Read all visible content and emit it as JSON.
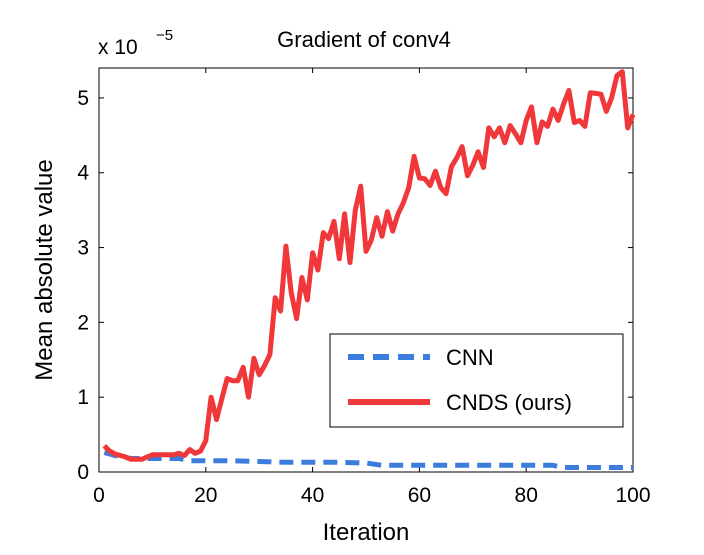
{
  "chart_data": {
    "type": "line",
    "title": "Gradient of conv4",
    "xlabel": "Iteration",
    "ylabel": "Mean absolute value",
    "y_multiplier_base": "x 10",
    "y_multiplier_exponent": "−5",
    "xlim": [
      0,
      100
    ],
    "ylim": [
      0,
      5.4
    ],
    "x_ticks": [
      0,
      20,
      40,
      60,
      80,
      100
    ],
    "y_ticks": [
      0,
      1,
      2,
      3,
      4,
      5
    ],
    "grid": false,
    "legend_position": "lower-right",
    "series": [
      {
        "name": "CNN",
        "color": "#3b7ddd",
        "style": "dashed",
        "x": [
          1,
          3,
          6,
          9,
          12,
          15,
          17,
          20,
          25,
          30,
          35,
          40,
          45,
          50,
          53,
          55,
          60,
          65,
          70,
          75,
          80,
          85,
          87,
          90,
          95,
          100
        ],
        "y": [
          0.26,
          0.22,
          0.18,
          0.18,
          0.18,
          0.18,
          0.15,
          0.15,
          0.15,
          0.14,
          0.13,
          0.13,
          0.13,
          0.12,
          0.09,
          0.09,
          0.09,
          0.09,
          0.09,
          0.09,
          0.09,
          0.09,
          0.06,
          0.06,
          0.06,
          0.06
        ]
      },
      {
        "name": "CNDS (ours)",
        "color": "#f0373a",
        "style": "solid",
        "x": [
          1,
          2,
          3,
          4,
          5,
          6,
          7,
          8,
          9,
          10,
          11,
          12,
          13,
          14,
          15,
          16,
          17,
          18,
          19,
          20,
          21,
          22,
          23,
          24,
          25,
          26,
          27,
          28,
          29,
          30,
          31,
          32,
          33,
          34,
          35,
          36,
          37,
          38,
          39,
          40,
          41,
          42,
          43,
          44,
          45,
          46,
          47,
          48,
          49,
          50,
          51,
          52,
          53,
          54,
          55,
          56,
          57,
          58,
          59,
          60,
          61,
          62,
          63,
          64,
          65,
          66,
          67,
          68,
          69,
          70,
          71,
          72,
          73,
          74,
          75,
          76,
          77,
          78,
          79,
          80,
          81,
          82,
          83,
          84,
          85,
          86,
          87,
          88,
          89,
          90,
          91,
          92,
          93,
          94,
          95,
          96,
          97,
          98,
          99,
          100
        ],
        "y": [
          0.35,
          0.28,
          0.24,
          0.22,
          0.2,
          0.17,
          0.17,
          0.17,
          0.2,
          0.23,
          0.23,
          0.23,
          0.23,
          0.23,
          0.25,
          0.22,
          0.3,
          0.25,
          0.28,
          0.42,
          1.0,
          0.7,
          0.98,
          1.25,
          1.22,
          1.22,
          1.4,
          1.0,
          1.52,
          1.3,
          1.42,
          1.57,
          2.33,
          2.15,
          3.02,
          2.4,
          2.05,
          2.6,
          2.3,
          2.93,
          2.7,
          3.2,
          3.12,
          3.35,
          2.85,
          3.45,
          2.8,
          3.5,
          3.82,
          2.95,
          3.1,
          3.4,
          3.15,
          3.48,
          3.22,
          3.45,
          3.6,
          3.8,
          4.22,
          3.93,
          3.92,
          3.83,
          4.02,
          3.8,
          3.72,
          4.08,
          4.2,
          4.35,
          3.96,
          4.1,
          4.28,
          4.07,
          4.6,
          4.48,
          4.6,
          4.4,
          4.63,
          4.52,
          4.4,
          4.7,
          4.88,
          4.4,
          4.68,
          4.62,
          4.85,
          4.7,
          4.92,
          5.1,
          4.67,
          4.7,
          4.62,
          5.07,
          5.06,
          5.05,
          4.82,
          5.0,
          5.3,
          5.35,
          4.6,
          4.78
        ]
      }
    ]
  }
}
